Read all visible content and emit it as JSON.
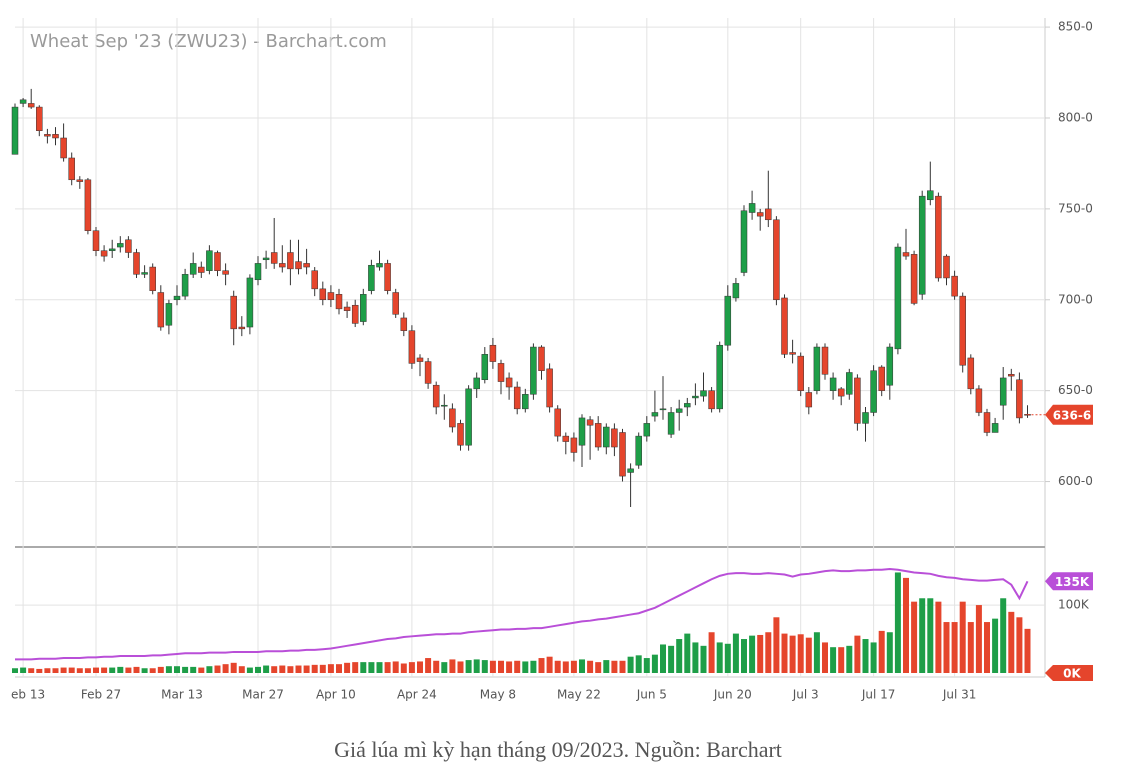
{
  "chart_data": [
    {
      "type": "candlestick",
      "title": "Wheat Sep '23 (ZWU23) - Barchart.com",
      "categories": [
        null,
        "eb 13",
        null,
        null,
        null,
        null,
        null,
        null,
        null,
        null,
        "Feb 27",
        null,
        null,
        null,
        null,
        null,
        null,
        null,
        null,
        null,
        "Mar 13",
        null,
        null,
        null,
        null,
        null,
        null,
        null,
        null,
        null,
        "Mar 27",
        null,
        null,
        null,
        null,
        null,
        null,
        null,
        null,
        "Apr 10",
        null,
        null,
        null,
        null,
        null,
        null,
        null,
        null,
        null,
        "Apr 24",
        null,
        null,
        null,
        null,
        null,
        null,
        null,
        null,
        null,
        "May 8",
        null,
        null,
        null,
        null,
        null,
        null,
        null,
        null,
        null,
        "May 22",
        null,
        null,
        null,
        null,
        null,
        null,
        null,
        null,
        "Jun 5",
        null,
        null,
        null,
        null,
        null,
        null,
        null,
        null,
        null,
        "Jun 20",
        null,
        null,
        null,
        null,
        null,
        null,
        null,
        null,
        "Jul 3",
        null,
        null,
        null,
        null,
        null,
        null,
        null,
        null,
        "Jul 17",
        null,
        null,
        null,
        null,
        null,
        null,
        null,
        null,
        null,
        "Jul 31",
        null,
        null,
        null,
        null,
        null,
        null,
        null,
        null,
        null
      ],
      "open": [
        780,
        808,
        808,
        806,
        791,
        791,
        789,
        778,
        766,
        766,
        738,
        727,
        727,
        729,
        733,
        726,
        714,
        718,
        704,
        686,
        700,
        702,
        714,
        718,
        716,
        726,
        716,
        702,
        685,
        685,
        711,
        722,
        726,
        720,
        726,
        721,
        720,
        716,
        706,
        704,
        703,
        696,
        697,
        688,
        705,
        718,
        720,
        704,
        690,
        683,
        668,
        666,
        653,
        642,
        640,
        632,
        620,
        651,
        656,
        675,
        665,
        657,
        652,
        640,
        648,
        674,
        662,
        640,
        625,
        624,
        620,
        634,
        632,
        619,
        629,
        627,
        605,
        609,
        625,
        636,
        640,
        626,
        638,
        641,
        646,
        647,
        650,
        640,
        675,
        701,
        715,
        748,
        748,
        750,
        744,
        701,
        671,
        669,
        649,
        650,
        674,
        650,
        651,
        648,
        657,
        632,
        638,
        663,
        653,
        673,
        726,
        725,
        703,
        755,
        757,
        724,
        713,
        702,
        668,
        651,
        638,
        627,
        642,
        659,
        656,
        637
      ],
      "high": [
        808,
        811,
        816,
        807,
        794,
        795,
        797,
        781,
        768,
        767,
        740,
        730,
        733,
        735,
        735,
        728,
        719,
        720,
        708,
        700,
        708,
        717,
        726,
        721,
        730,
        727,
        720,
        705,
        691,
        714,
        724,
        727,
        745,
        730,
        733,
        733,
        728,
        718,
        710,
        708,
        706,
        699,
        700,
        706,
        722,
        727,
        722,
        706,
        693,
        686,
        670,
        668,
        655,
        648,
        643,
        634,
        653,
        660,
        674,
        679,
        667,
        660,
        655,
        651,
        676,
        675,
        665,
        642,
        627,
        627,
        637,
        636,
        636,
        632,
        632,
        629,
        610,
        627,
        636,
        650,
        658,
        641,
        645,
        646,
        654,
        660,
        652,
        677,
        708,
        712,
        752,
        760,
        750,
        771,
        746,
        703,
        678,
        671,
        652,
        676,
        676,
        660,
        652,
        662,
        659,
        641,
        664,
        664,
        676,
        731,
        739,
        727,
        760,
        776,
        759,
        725,
        716,
        704,
        670,
        653,
        640,
        635,
        663,
        662,
        660,
        642
      ],
      "low": [
        780,
        806,
        805,
        790,
        786,
        785,
        776,
        763,
        761,
        736,
        724,
        721,
        723,
        726,
        723,
        712,
        712,
        703,
        683,
        681,
        697,
        700,
        712,
        712,
        714,
        713,
        708,
        675,
        680,
        681,
        708,
        717,
        717,
        715,
        708,
        714,
        714,
        702,
        697,
        696,
        692,
        690,
        685,
        686,
        703,
        716,
        703,
        690,
        680,
        662,
        658,
        651,
        637,
        634,
        627,
        617,
        617,
        646,
        654,
        662,
        648,
        645,
        637,
        638,
        645,
        656,
        638,
        622,
        615,
        611,
        608,
        612,
        617,
        615,
        614,
        600,
        586,
        607,
        622,
        633,
        634,
        624,
        628,
        636,
        642,
        644,
        638,
        638,
        672,
        699,
        713,
        744,
        738,
        740,
        697,
        668,
        665,
        647,
        637,
        648,
        656,
        645,
        642,
        645,
        628,
        622,
        636,
        647,
        645,
        670,
        722,
        697,
        700,
        752,
        710,
        708,
        700,
        660,
        648,
        636,
        625,
        627,
        634,
        650,
        632,
        635
      ],
      "close": [
        806,
        810,
        806,
        793,
        790,
        789,
        778,
        766,
        765,
        738,
        727,
        724,
        728,
        731,
        726,
        714,
        715,
        705,
        685,
        698,
        702,
        714,
        720,
        715,
        727,
        716,
        714,
        684,
        684,
        712,
        720,
        723,
        720,
        718,
        717,
        717,
        718,
        706,
        700,
        700,
        695,
        694,
        687,
        703,
        719,
        720,
        705,
        692,
        683,
        665,
        666,
        654,
        641,
        642,
        630,
        620,
        651,
        657,
        670,
        666,
        655,
        652,
        640,
        648,
        674,
        661,
        641,
        625,
        622,
        616,
        635,
        631,
        619,
        630,
        619,
        603,
        607,
        625,
        632,
        638,
        640,
        638,
        640,
        643,
        647,
        650,
        640,
        675,
        702,
        709,
        749,
        753,
        746,
        744,
        700,
        670,
        670,
        650,
        641,
        674,
        659,
        657,
        647,
        660,
        632,
        638,
        661,
        650,
        674,
        729,
        724,
        698,
        757,
        760,
        712,
        712,
        702,
        664,
        651,
        638,
        627,
        632,
        657,
        658,
        635,
        636.75
      ],
      "up_color": "#1e9e48",
      "down_color": "#e5452c",
      "ylim": [
        564,
        855
      ],
      "yticks": [
        {
          "value": 600,
          "label": "600-0"
        },
        {
          "value": 650,
          "label": "650-0"
        },
        {
          "value": 700,
          "label": "700-0"
        },
        {
          "value": 750,
          "label": "750-0"
        },
        {
          "value": 800,
          "label": "800-0"
        },
        {
          "value": 850,
          "label": "850-0"
        }
      ],
      "last_price": {
        "value": 636.75,
        "label": "636-6"
      },
      "grid": true
    },
    {
      "type": "bar",
      "values": [
        7,
        8,
        7,
        6,
        7,
        7,
        8,
        8,
        7,
        7,
        8,
        8,
        8,
        9,
        8,
        9,
        7,
        7,
        9,
        10,
        10,
        9,
        9,
        8,
        10,
        11,
        13,
        15,
        10,
        8,
        9,
        11,
        10,
        11,
        10,
        11,
        11,
        12,
        12,
        13,
        13,
        15,
        16,
        16,
        16,
        16,
        16,
        17,
        14,
        16,
        17,
        22,
        18,
        16,
        20,
        17,
        19,
        20,
        19,
        18,
        18,
        17,
        18,
        17,
        18,
        22,
        24,
        18,
        17,
        18,
        20,
        18,
        16,
        19,
        18,
        18,
        24,
        26,
        22,
        27,
        42,
        40,
        50,
        58,
        45,
        40,
        60,
        45,
        43,
        58,
        50,
        55,
        56,
        60,
        82,
        58,
        55,
        57,
        52,
        60,
        45,
        38,
        38,
        40,
        55,
        50,
        45,
        62,
        60,
        148,
        140,
        105,
        110,
        110,
        105,
        75,
        75,
        105,
        75,
        100,
        75,
        80,
        110,
        90,
        82,
        65
      ],
      "line": {
        "color": "#b94fd8",
        "values": [
          20,
          20,
          20,
          21,
          21,
          21,
          22,
          22,
          22,
          23,
          23,
          24,
          24,
          25,
          25,
          25,
          25,
          26,
          26,
          27,
          28,
          29,
          29,
          29,
          30,
          30,
          30,
          31,
          31,
          31,
          31,
          32,
          32,
          32,
          33,
          33,
          34,
          34,
          35,
          36,
          38,
          40,
          42,
          44,
          46,
          48,
          50,
          51,
          53,
          54,
          55,
          56,
          57,
          57,
          58,
          58,
          60,
          61,
          62,
          63,
          64,
          64,
          65,
          65,
          66,
          66,
          68,
          70,
          72,
          74,
          76,
          77,
          79,
          80,
          82,
          84,
          86,
          88,
          92,
          96,
          102,
          108,
          114,
          120,
          126,
          132,
          138,
          143,
          146,
          147,
          147,
          146,
          146,
          147,
          146,
          145,
          142,
          145,
          146,
          148,
          150,
          151,
          150,
          150,
          151,
          151,
          152,
          152,
          153,
          152,
          150,
          148,
          147,
          146,
          143,
          141,
          140,
          138,
          137,
          136,
          136,
          137,
          138,
          130,
          110,
          135
        ],
        "last_label": {
          "value": 135,
          "label": "135K"
        }
      },
      "ylim": [
        0,
        184
      ],
      "yticks": [
        {
          "value": 0,
          "label": "0K"
        },
        {
          "value": 100,
          "label": "100K"
        }
      ],
      "grid": true
    }
  ],
  "caption": "Giá lúa mì kỳ hạn tháng 09/2023. Nguồn: Barchart"
}
